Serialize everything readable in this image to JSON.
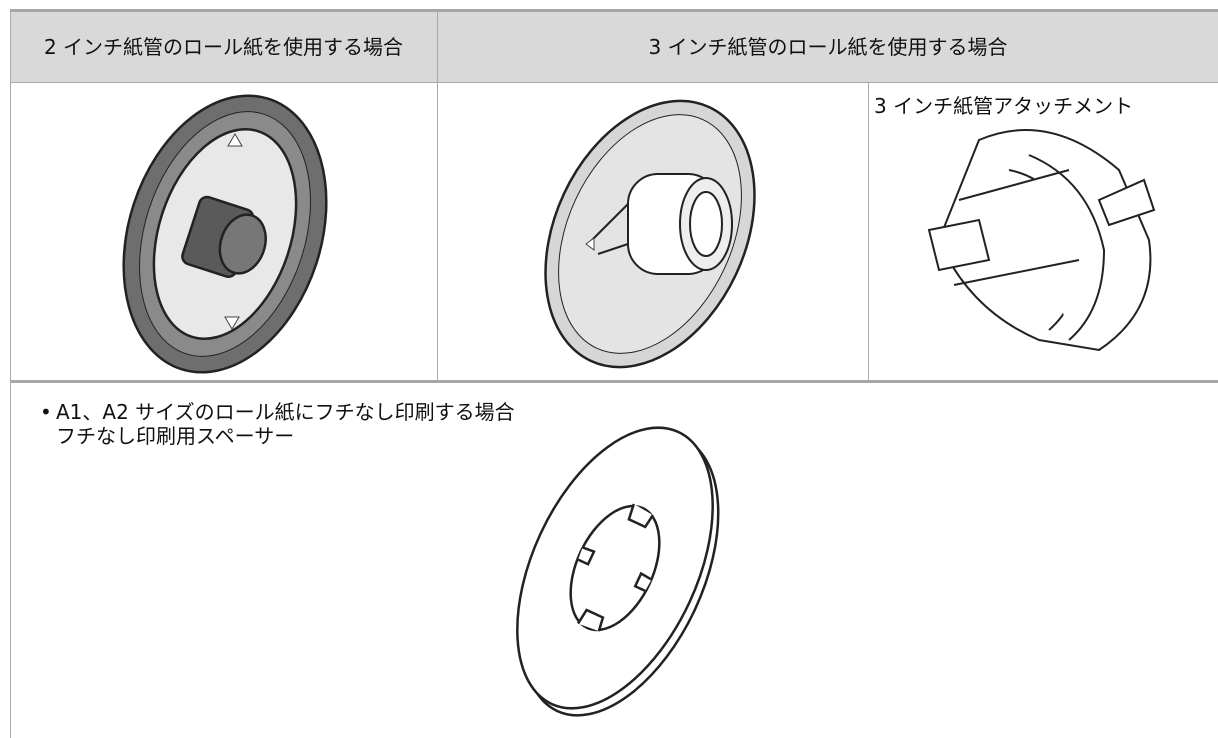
{
  "table": {
    "header": [
      "2 インチ紙管のロール紙を使用する場合",
      "3 インチ紙管のロール紙を使用する場合"
    ],
    "cells": [
      "3 インチ紙管アタッチメント"
    ]
  },
  "note": {
    "bullet": "A1、A2 サイズのロール紙にフチなし印刷する場合",
    "item": "フチなし印刷用スペーサー"
  }
}
